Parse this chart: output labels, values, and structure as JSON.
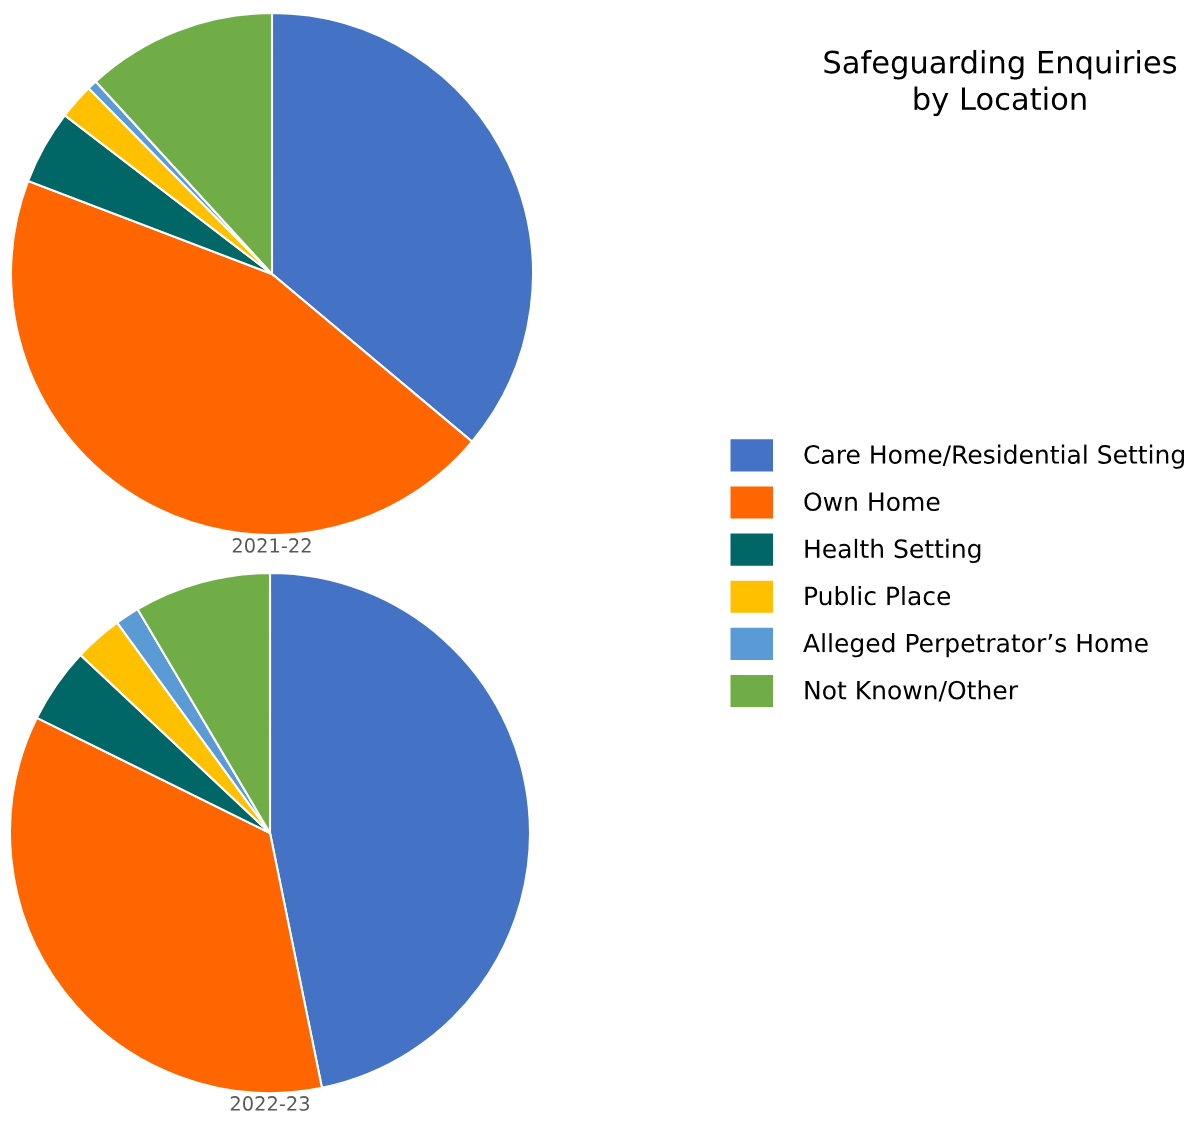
{
  "chart_data": [
    {
      "type": "pie",
      "title": "Safeguarding Enquiries by Location",
      "xlabel": "2021-22",
      "legend": "right",
      "categories": [
        "Care Home/Residential Setting",
        "Own Home",
        "Health Setting",
        "Public Place",
        "Alleged Perpetrator’s Home",
        "Not Known/Other"
      ],
      "values": [
        36.1,
        44.7,
        4.6,
        2.2,
        0.6,
        11.8
      ],
      "colors": [
        "#4472c4",
        "#ff6600",
        "#006666",
        "#ffc000",
        "#5b9bd5",
        "#70ad47"
      ]
    },
    {
      "type": "pie",
      "xlabel": "2022-23",
      "categories": [
        null,
        null,
        null,
        null,
        null,
        null
      ],
      "values": [
        46.8,
        35.5,
        4.7,
        3.0,
        1.5,
        8.5
      ],
      "colors": [
        "#4472c4",
        "#ff6600",
        "#006666",
        "#ffc000",
        "#5b9bd5",
        "#70ad47"
      ]
    }
  ]
}
